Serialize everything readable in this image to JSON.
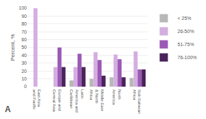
{
  "chart_data": {
    "type": "bar",
    "categories": [
      "East Asia\nand Pacific",
      "Europe and\nCentral Asia",
      "Latin\nAmerica and\nCaribbean",
      "Middle East\n& North\nAfrica",
      "North\nAmerica",
      "Sub-Saharan\nAfrica"
    ],
    "series": [
      {
        "name": "< 25%",
        "color": "#b8b8b8",
        "values": [
          0,
          0,
          8,
          10,
          12,
          11
        ]
      },
      {
        "name": "26-50%",
        "color": "#d4aee0",
        "values": [
          100,
          25,
          25,
          44,
          41,
          45
        ]
      },
      {
        "name": "51-75%",
        "color": "#9b59b6",
        "values": [
          0,
          50,
          42,
          34,
          35,
          22
        ]
      },
      {
        "name": "76-100%",
        "color": "#4a235a",
        "values": [
          0,
          25,
          25,
          14,
          12,
          22
        ]
      }
    ],
    "ylabel": "Percent, %",
    "ylim": [
      0,
      100
    ],
    "yticks": [
      0,
      10,
      20,
      30,
      40,
      50,
      60,
      70,
      80,
      90,
      100
    ],
    "grid": true,
    "legend": "upper right",
    "annotations": [
      "A"
    ]
  }
}
